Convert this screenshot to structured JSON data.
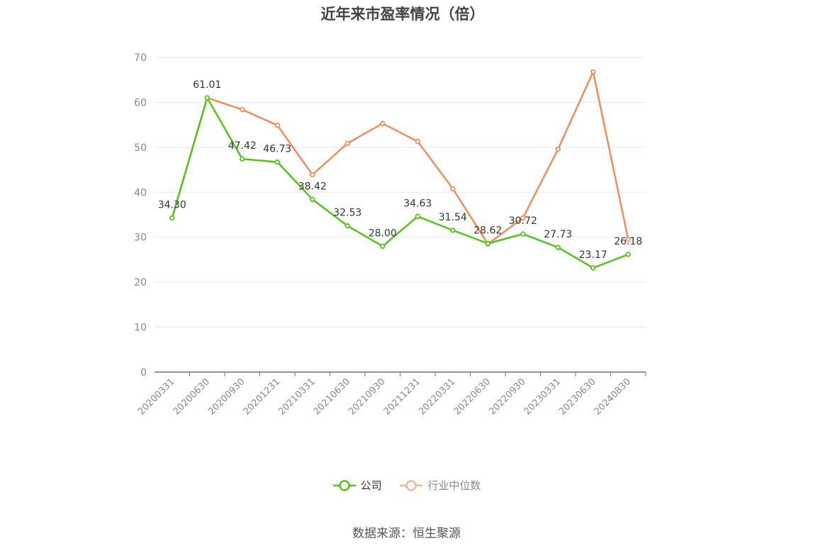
{
  "chart_data": {
    "type": "line",
    "title": "近年来市盈率情况（倍）",
    "categories": [
      "20200331",
      "20200630",
      "20200930",
      "20201231",
      "20210331",
      "20210630",
      "20210930",
      "20211231",
      "20220331",
      "20220630",
      "20220930",
      "20230331",
      "20230630",
      "20240830"
    ],
    "series": [
      {
        "name": "公司",
        "color": "#52c41a",
        "values": [
          34.3,
          61.01,
          47.42,
          46.73,
          38.42,
          32.53,
          28.0,
          34.63,
          31.54,
          28.62,
          30.72,
          27.73,
          23.17,
          26.18
        ],
        "labels": [
          "34.30",
          "61.01",
          "47.42",
          "46.73",
          "38.42",
          "32.53",
          "28.00",
          "34.63",
          "31.54",
          "28.62",
          "30.72",
          "27.73",
          "23.17",
          "26.18"
        ]
      },
      {
        "name": "行业中位数",
        "color": "#f28c5a",
        "values": [
          34.3,
          61.0,
          58.4,
          54.9,
          43.9,
          50.9,
          55.3,
          51.3,
          40.8,
          28.5,
          34.3,
          49.6,
          66.8,
          29.5
        ]
      }
    ],
    "ylim": [
      0,
      70
    ],
    "yticks": [
      "0",
      "10",
      "20",
      "30",
      "40",
      "50",
      "60",
      "70"
    ],
    "grid": true,
    "legend_position": "bottom-center"
  },
  "legend": {
    "company": "公司",
    "industry": "行业中位数"
  },
  "source": "数据来源：恒生聚源"
}
